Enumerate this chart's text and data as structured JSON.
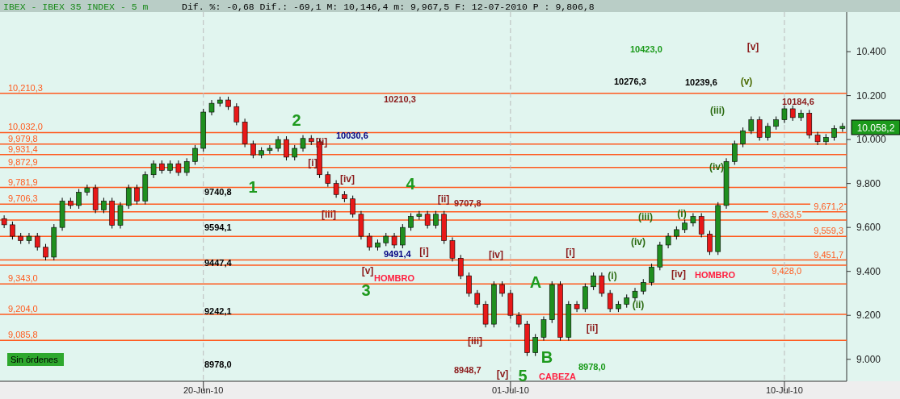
{
  "chart_data": {
    "type": "candlestick",
    "title": "IBEX - IBEX 35 INDEX - 5 m",
    "subtitle": "Dif. %: -0,68 Dif.: -69,1 M: 10,146,4 m: 9,967,5 F: 12-07-2010 P : 9,806,8",
    "categories": [
      null,
      null,
      null,
      null,
      null,
      null,
      null,
      null,
      null,
      null,
      null,
      null,
      null,
      null,
      null,
      null,
      null,
      null,
      null,
      null,
      null,
      null,
      null,
      null,
      "20-Jun-10",
      null,
      null,
      null,
      null,
      null,
      null,
      null,
      null,
      null,
      null,
      null,
      null,
      null,
      null,
      null,
      null,
      null,
      null,
      null,
      null,
      null,
      null,
      null,
      null,
      null,
      null,
      null,
      null,
      null,
      null,
      null,
      null,
      null,
      null,
      null,
      null,
      "01-Jul-10",
      null,
      null,
      null,
      null,
      null,
      null,
      null,
      null,
      null,
      null,
      null,
      null,
      null,
      null,
      null,
      null,
      null,
      null,
      null,
      null,
      null,
      null,
      null,
      null,
      null,
      null,
      null,
      null,
      null,
      null,
      null,
      null,
      "10-Jul-10",
      null,
      null,
      null,
      null,
      null,
      null,
      null
    ],
    "ohlc": [
      [
        9640,
        9655,
        9597,
        9612
      ],
      [
        9612,
        9627,
        9545,
        9560
      ],
      [
        9560,
        9575,
        9525,
        9540
      ],
      [
        9540,
        9575,
        9525,
        9560
      ],
      [
        9560,
        9575,
        9495,
        9510
      ],
      [
        9510,
        9525,
        9450,
        9465
      ],
      [
        9465,
        9615,
        9450,
        9600
      ],
      [
        9600,
        9735,
        9585,
        9720
      ],
      [
        9720,
        9735,
        9685,
        9700
      ],
      [
        9700,
        9775,
        9685,
        9760
      ],
      [
        9760,
        9795,
        9745,
        9780
      ],
      [
        9780,
        9795,
        9665,
        9680
      ],
      [
        9680,
        9735,
        9665,
        9720
      ],
      [
        9720,
        9735,
        9595,
        9610
      ],
      [
        9610,
        9715,
        9595,
        9700
      ],
      [
        9700,
        9795,
        9685,
        9780
      ],
      [
        9780,
        9795,
        9705,
        9720
      ],
      [
        9720,
        9855,
        9705,
        9840
      ],
      [
        9840,
        9905,
        9825,
        9890
      ],
      [
        9890,
        9905,
        9845,
        9860
      ],
      [
        9860,
        9905,
        9845,
        9890
      ],
      [
        9890,
        9905,
        9835,
        9850
      ],
      [
        9850,
        9915,
        9835,
        9900
      ],
      [
        9900,
        9975,
        9885,
        9960
      ],
      [
        9960,
        10140,
        9945,
        10125
      ],
      [
        10125,
        10180,
        10110,
        10165
      ],
      [
        10165,
        10195,
        10150,
        10180
      ],
      [
        10180,
        10195,
        10135,
        10150
      ],
      [
        10150,
        10165,
        10065,
        10080
      ],
      [
        10080,
        10095,
        9965,
        9980
      ],
      [
        9980,
        9995,
        9915,
        9930
      ],
      [
        9930,
        9965,
        9915,
        9950
      ],
      [
        9950,
        9975,
        9935,
        9960
      ],
      [
        9960,
        10015,
        9945,
        10000
      ],
      [
        10000,
        10015,
        9905,
        9920
      ],
      [
        9920,
        9975,
        9905,
        9960
      ],
      [
        9960,
        10020,
        9945,
        10005
      ],
      [
        10005,
        10020,
        9975,
        9990
      ],
      [
        9990,
        10005,
        9825,
        9840
      ],
      [
        9840,
        9855,
        9785,
        9800
      ],
      [
        9800,
        9815,
        9735,
        9750
      ],
      [
        9750,
        9765,
        9715,
        9730
      ],
      [
        9730,
        9745,
        9645,
        9660
      ],
      [
        9660,
        9675,
        9545,
        9560
      ],
      [
        9560,
        9575,
        9495,
        9510
      ],
      [
        9510,
        9545,
        9495,
        9530
      ],
      [
        9530,
        9575,
        9515,
        9560
      ],
      [
        9560,
        9575,
        9505,
        9520
      ],
      [
        9520,
        9615,
        9505,
        9600
      ],
      [
        9600,
        9665,
        9585,
        9650
      ],
      [
        9650,
        9675,
        9635,
        9660
      ],
      [
        9660,
        9675,
        9595,
        9610
      ],
      [
        9610,
        9675,
        9595,
        9660
      ],
      [
        9660,
        9675,
        9525,
        9540
      ],
      [
        9540,
        9555,
        9445,
        9460
      ],
      [
        9460,
        9475,
        9365,
        9380
      ],
      [
        9380,
        9395,
        9285,
        9300
      ],
      [
        9300,
        9315,
        9235,
        9250
      ],
      [
        9250,
        9265,
        9145,
        9160
      ],
      [
        9160,
        9355,
        9145,
        9340
      ],
      [
        9340,
        9355,
        9285,
        9300
      ],
      [
        9300,
        9315,
        9185,
        9200
      ],
      [
        9200,
        9215,
        9145,
        9160
      ],
      [
        9160,
        9175,
        9015,
        9030
      ],
      [
        9030,
        9115,
        9015,
        9100
      ],
      [
        9100,
        9195,
        9085,
        9180
      ],
      [
        9180,
        9355,
        9165,
        9340
      ],
      [
        9340,
        9355,
        9085,
        9100
      ],
      [
        9100,
        9265,
        9085,
        9250
      ],
      [
        9250,
        9265,
        9215,
        9230
      ],
      [
        9230,
        9345,
        9215,
        9330
      ],
      [
        9330,
        9395,
        9315,
        9380
      ],
      [
        9380,
        9395,
        9285,
        9300
      ],
      [
        9300,
        9315,
        9215,
        9230
      ],
      [
        9230,
        9265,
        9215,
        9250
      ],
      [
        9250,
        9295,
        9235,
        9280
      ],
      [
        9280,
        9325,
        9265,
        9310
      ],
      [
        9310,
        9365,
        9295,
        9350
      ],
      [
        9350,
        9435,
        9335,
        9420
      ],
      [
        9420,
        9535,
        9405,
        9520
      ],
      [
        9520,
        9575,
        9505,
        9560
      ],
      [
        9560,
        9605,
        9545,
        9590
      ],
      [
        9590,
        9635,
        9575,
        9620
      ],
      [
        9620,
        9665,
        9605,
        9650
      ],
      [
        9650,
        9665,
        9555,
        9570
      ],
      [
        9570,
        9585,
        9475,
        9490
      ],
      [
        9490,
        9715,
        9475,
        9700
      ],
      [
        9700,
        9915,
        9685,
        9900
      ],
      [
        9900,
        9995,
        9885,
        9980
      ],
      [
        9980,
        10055,
        9965,
        10040
      ],
      [
        10040,
        10105,
        10025,
        10090
      ],
      [
        10090,
        10105,
        9995,
        10010
      ],
      [
        10010,
        10075,
        9995,
        10060
      ],
      [
        10060,
        10105,
        10045,
        10090
      ],
      [
        10090,
        10155,
        10075,
        10140
      ],
      [
        10140,
        10155,
        10085,
        10100
      ],
      [
        10100,
        10135,
        10085,
        10120
      ],
      [
        10120,
        10135,
        10005,
        10020
      ],
      [
        10020,
        10035,
        9975,
        9990
      ],
      [
        9990,
        10025,
        9975,
        10010
      ],
      [
        10010,
        10065,
        9995,
        10050
      ],
      [
        10050,
        10075,
        10035,
        10060
      ]
    ],
    "ylim": [
      8900,
      10580
    ],
    "grid": "x",
    "yticks": [
      {
        "value": 9000,
        "label": "9.000"
      },
      {
        "value": 9200,
        "label": "9.200"
      },
      {
        "value": 9400,
        "label": "9.400"
      },
      {
        "value": 9600,
        "label": "9.600"
      },
      {
        "value": 9800,
        "label": "9.800"
      },
      {
        "value": 10000,
        "label": "10.000"
      },
      {
        "value": 10200,
        "label": "10.200"
      },
      {
        "value": 10400,
        "label": "10.400"
      }
    ],
    "ref_lines": [
      {
        "axis": "y",
        "value": 10210.3,
        "label": "10,210,3",
        "color": "#ff5a1e"
      },
      {
        "axis": "y",
        "value": 10032.0,
        "label": "10,032,0",
        "color": "#ff5a1e"
      },
      {
        "axis": "y",
        "value": 9979.8,
        "label": "9,979,8",
        "color": "#ff5a1e"
      },
      {
        "axis": "y",
        "value": 9931.4,
        "label": "9,931,4",
        "color": "#ff5a1e"
      },
      {
        "axis": "y",
        "value": 9872.9,
        "label": "9,872,9",
        "color": "#ff5a1e"
      },
      {
        "axis": "y",
        "value": 9781.9,
        "label": "9,781,9",
        "color": "#ff5a1e"
      },
      {
        "axis": "y",
        "value": 9706.3,
        "label": "9,706,3",
        "color": "#ff5a1e"
      },
      {
        "axis": "y",
        "value": 9671.2,
        "label": "9,671,2",
        "color": "#ff5a1e"
      },
      {
        "axis": "y",
        "value": 9633.5,
        "label": "9,633,5",
        "color": "#ff5a1e"
      },
      {
        "axis": "y",
        "value": 9559.3,
        "label": "9,559,3",
        "color": "#ff5a1e"
      },
      {
        "axis": "y",
        "value": 9451.7,
        "label": "9,451,7",
        "color": "#ff5a1e"
      },
      {
        "axis": "y",
        "value": 9428.0,
        "label": "9,428,0",
        "color": "#ff5a1e"
      },
      {
        "axis": "y",
        "value": 9343.0,
        "label": "9,343,0",
        "color": "#ff5a1e"
      },
      {
        "axis": "y",
        "value": 9204.0,
        "label": "9,204,0",
        "color": "#ff5a1e"
      },
      {
        "axis": "y",
        "value": 9085.8,
        "label": "9,085,8",
        "color": "#ff5a1e"
      }
    ],
    "annotations": [
      "1",
      "2",
      "3",
      "4",
      "5",
      "A",
      "B",
      "[v]",
      "(v)",
      "[ii]",
      "[i]",
      "[iv]",
      "[iii]",
      "[v]",
      "[i]",
      "[ii]",
      "[iv]",
      "[iii]",
      "[v]",
      "[ii]",
      "[i]",
      "[iv]",
      "HOMBRO",
      "HOMBRO",
      "CABEZA",
      "(i)",
      "(ii)",
      "(iii)",
      "(iv)",
      "(i)",
      "(iii)",
      "(iv)",
      "10423,0",
      "10276,3",
      "10239,6",
      "10184,6",
      "10210,3",
      "10030,6",
      "9707,8",
      "9491,4",
      "9740,8",
      "9594,1",
      "9447,4",
      "9242,1",
      "8978,0",
      "8948,7",
      "8978,0",
      "10.058,2",
      "Sin órdenes"
    ]
  }
}
